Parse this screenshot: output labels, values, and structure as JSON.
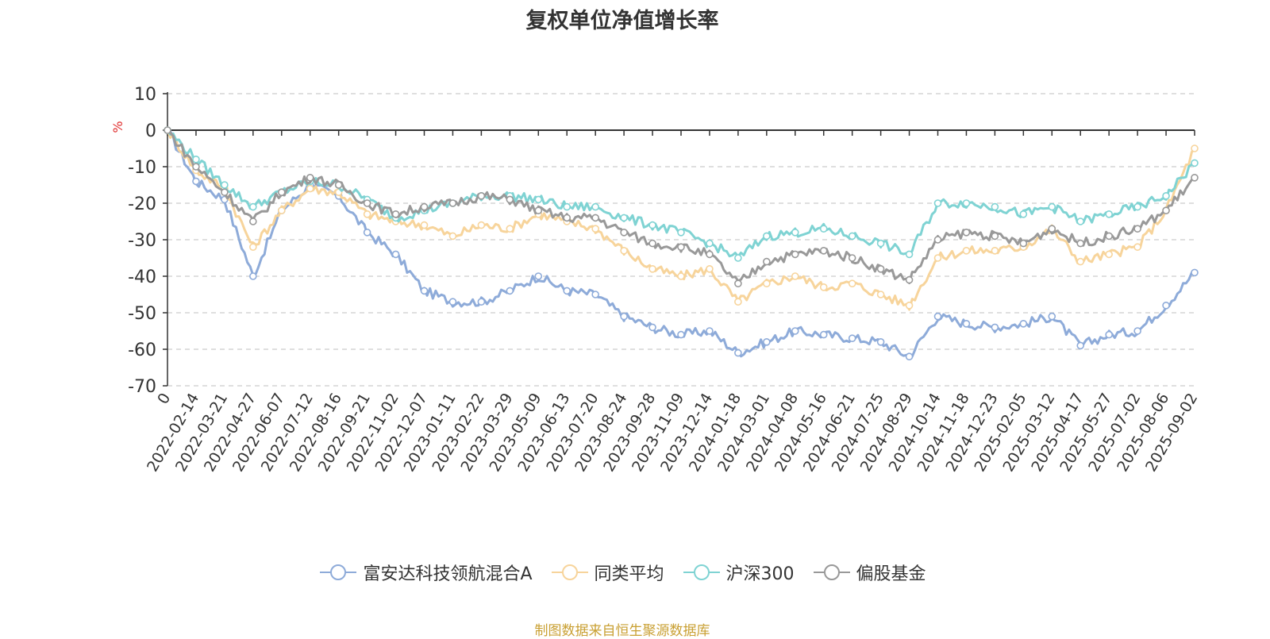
{
  "chart_data": {
    "type": "line",
    "title": "复权单位净值增长率",
    "ylabel": "%",
    "ylim": [
      -70,
      10
    ],
    "yticks": [
      10,
      0,
      -10,
      -20,
      -30,
      -40,
      -50,
      -60,
      -70
    ],
    "grid": true,
    "legend_position": "bottom",
    "categories": [
      "0",
      "2022-02-14",
      "2022-03-21",
      "2022-04-27",
      "2022-06-07",
      "2022-07-12",
      "2022-08-16",
      "2022-09-21",
      "2022-11-02",
      "2022-12-07",
      "2023-01-11",
      "2023-02-22",
      "2023-03-29",
      "2023-05-09",
      "2023-06-13",
      "2023-07-20",
      "2023-08-24",
      "2023-09-28",
      "2023-11-09",
      "2023-12-14",
      "2024-01-18",
      "2024-03-01",
      "2024-04-08",
      "2024-05-16",
      "2024-06-21",
      "2024-07-25",
      "2024-08-29",
      "2024-10-14",
      "2024-11-18",
      "2024-12-23",
      "2025-02-05",
      "2025-03-12",
      "2025-04-17",
      "2025-05-27",
      "2025-07-02",
      "2025-08-06",
      "2025-09-02"
    ],
    "series": [
      {
        "name": "富安达科技领航混合A",
        "color": "#8eabd9",
        "values": [
          0,
          -14,
          -19,
          -40,
          -22,
          -15,
          -18,
          -28,
          -34,
          -44,
          -47,
          -47,
          -44,
          -40,
          -44,
          -45,
          -51,
          -54,
          -56,
          -55,
          -61,
          -58,
          -55,
          -56,
          -57,
          -58,
          -62,
          -51,
          -53,
          -54,
          -53,
          -51,
          -59,
          -56,
          -55,
          -48,
          -39
        ]
      },
      {
        "name": "同类平均",
        "color": "#f7d49b",
        "values": [
          0,
          -11,
          -16,
          -32,
          -22,
          -16,
          -17,
          -23,
          -25,
          -26,
          -29,
          -26,
          -27,
          -23,
          -25,
          -27,
          -33,
          -38,
          -40,
          -38,
          -47,
          -42,
          -40,
          -43,
          -42,
          -45,
          -48,
          -35,
          -33,
          -33,
          -32,
          -27,
          -36,
          -34,
          -32,
          -22,
          -5
        ]
      },
      {
        "name": "沪深300",
        "color": "#7fd3d3",
        "values": [
          0,
          -8,
          -15,
          -21,
          -17,
          -14,
          -15,
          -19,
          -24,
          -22,
          -20,
          -18,
          -18,
          -19,
          -21,
          -21,
          -24,
          -26,
          -28,
          -31,
          -35,
          -29,
          -28,
          -27,
          -29,
          -31,
          -34,
          -20,
          -20,
          -21,
          -23,
          -21,
          -25,
          -23,
          -21,
          -18,
          -9
        ]
      },
      {
        "name": "偏股基金",
        "color": "#999999",
        "values": [
          0,
          -10,
          -17,
          -25,
          -17,
          -13,
          -15,
          -20,
          -23,
          -21,
          -20,
          -18,
          -19,
          -22,
          -24,
          -24,
          -28,
          -31,
          -32,
          -34,
          -42,
          -36,
          -34,
          -33,
          -35,
          -38,
          -41,
          -30,
          -28,
          -29,
          -31,
          -27,
          -31,
          -29,
          -27,
          -22,
          -13
        ]
      }
    ]
  },
  "source_text": "制图数据来自恒生聚源数据库",
  "colors": {
    "axis": "#333333",
    "grid": "#cccccc",
    "ylabel": "#e03030",
    "source": "#c9a033"
  }
}
